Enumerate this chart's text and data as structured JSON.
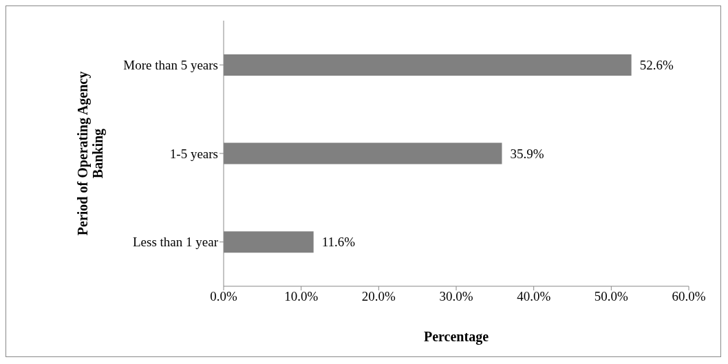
{
  "chart_data": {
    "type": "bar",
    "orientation": "horizontal",
    "xlabel": "Percentage",
    "ylabel": "Period of Operating Agency Banking",
    "categories": [
      "More than 5 years",
      "1-5 years",
      "Less than 1 year"
    ],
    "values": [
      52.6,
      35.9,
      11.6
    ],
    "color": "#808080",
    "value_labels": [
      "52.6%",
      "35.9%",
      "11.6%"
    ],
    "xlim": [
      0,
      60
    ],
    "xticks": [
      {
        "value": 0,
        "label": "0.0%"
      },
      {
        "value": 10,
        "label": "10.0%"
      },
      {
        "value": 20,
        "label": "20.0%"
      },
      {
        "value": 30,
        "label": "30.0%"
      },
      {
        "value": 40,
        "label": "40.0%"
      },
      {
        "value": 50,
        "label": "50.0%"
      },
      {
        "value": 60,
        "label": "60.0%"
      }
    ],
    "grid": false,
    "legend": false
  }
}
